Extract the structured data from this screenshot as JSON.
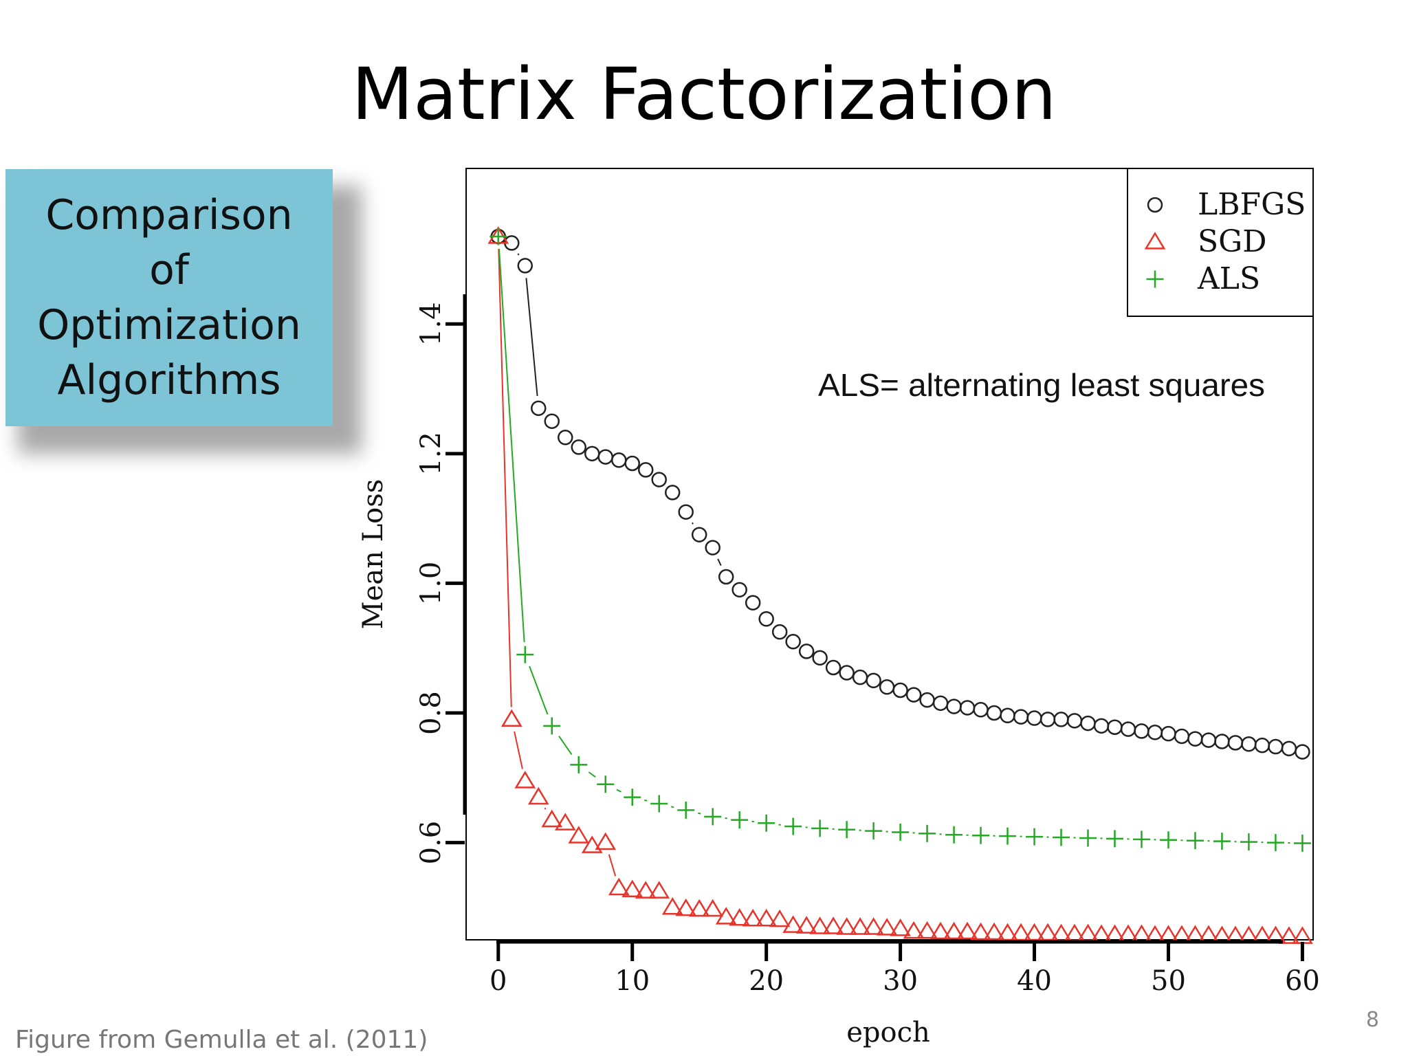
{
  "slide": {
    "title": "Matrix Factorization",
    "callout_text": "Comparison\nof\nOptimization\nAlgorithms",
    "citation": "Figure from Gemulla et al. (2011)",
    "page_number": "8"
  },
  "chart_data": {
    "type": "scatter",
    "title": "",
    "xlabel": "epoch",
    "ylabel": "Mean Loss",
    "xlim": [
      -2.4,
      60.8
    ],
    "ylim": [
      0.45,
      1.64
    ],
    "xticks": [
      0,
      10,
      20,
      30,
      40,
      50,
      60
    ],
    "yticks": [
      0.6,
      0.8,
      1.0,
      1.2,
      1.4
    ],
    "xtick_labels": [
      "0",
      "10",
      "20",
      "30",
      "40",
      "50",
      "60"
    ],
    "ytick_labels": [
      "0.6",
      "0.8",
      "1.0",
      "1.2",
      "1.4"
    ],
    "legend_position": "top-right",
    "annotation": "ALS= alternating least squares",
    "series": [
      {
        "name": "LBFGS",
        "marker": "circle",
        "color": "#222222",
        "x": [
          0,
          1,
          2,
          3,
          4,
          5,
          6,
          7,
          8,
          9,
          10,
          11,
          12,
          13,
          14,
          15,
          16,
          17,
          18,
          19,
          20,
          21,
          22,
          23,
          24,
          25,
          26,
          27,
          28,
          29,
          30,
          31,
          32,
          33,
          34,
          35,
          36,
          37,
          38,
          39,
          40,
          41,
          42,
          43,
          44,
          45,
          46,
          47,
          48,
          49,
          50,
          51,
          52,
          53,
          54,
          55,
          56,
          57,
          58,
          59,
          60
        ],
        "y": [
          1.535,
          1.525,
          1.49,
          1.27,
          1.25,
          1.225,
          1.21,
          1.2,
          1.195,
          1.19,
          1.185,
          1.175,
          1.16,
          1.14,
          1.11,
          1.075,
          1.055,
          1.01,
          0.99,
          0.97,
          0.945,
          0.925,
          0.91,
          0.895,
          0.885,
          0.87,
          0.862,
          0.855,
          0.85,
          0.84,
          0.835,
          0.828,
          0.82,
          0.815,
          0.81,
          0.808,
          0.805,
          0.8,
          0.796,
          0.794,
          0.792,
          0.79,
          0.79,
          0.788,
          0.784,
          0.78,
          0.778,
          0.775,
          0.772,
          0.77,
          0.768,
          0.764,
          0.76,
          0.758,
          0.756,
          0.754,
          0.752,
          0.75,
          0.748,
          0.745,
          0.74
        ]
      },
      {
        "name": "SGD",
        "marker": "triangle",
        "color": "#e8332a",
        "x": [
          0,
          1,
          2,
          3,
          4,
          5,
          6,
          7,
          8,
          9,
          10,
          11,
          12,
          13,
          14,
          15,
          16,
          17,
          18,
          19,
          20,
          21,
          22,
          23,
          24,
          25,
          26,
          27,
          28,
          29,
          30,
          31,
          32,
          33,
          34,
          35,
          36,
          37,
          38,
          39,
          40,
          41,
          42,
          43,
          44,
          45,
          46,
          47,
          48,
          49,
          50,
          51,
          52,
          53,
          54,
          55,
          56,
          57,
          58,
          59,
          60
        ],
        "y": [
          1.535,
          0.79,
          0.695,
          0.67,
          0.635,
          0.63,
          0.61,
          0.595,
          0.6,
          0.53,
          0.527,
          0.525,
          0.525,
          0.5,
          0.498,
          0.497,
          0.497,
          0.485,
          0.483,
          0.482,
          0.482,
          0.481,
          0.472,
          0.471,
          0.47,
          0.47,
          0.469,
          0.469,
          0.469,
          0.468,
          0.467,
          0.463,
          0.463,
          0.462,
          0.462,
          0.462,
          0.461,
          0.461,
          0.46,
          0.46,
          0.46,
          0.46,
          0.459,
          0.459,
          0.459,
          0.458,
          0.458,
          0.458,
          0.458,
          0.457,
          0.457,
          0.457,
          0.457,
          0.457,
          0.456,
          0.456,
          0.456,
          0.456,
          0.456,
          0.455,
          0.455
        ]
      },
      {
        "name": "ALS",
        "marker": "plus",
        "color": "#22aa22",
        "x": [
          0,
          2,
          4,
          6,
          8,
          10,
          12,
          14,
          16,
          18,
          20,
          22,
          24,
          26,
          28,
          30,
          32,
          34,
          36,
          38,
          40,
          42,
          44,
          46,
          48,
          50,
          52,
          54,
          56,
          58,
          60
        ],
        "y": [
          1.535,
          0.89,
          0.78,
          0.72,
          0.69,
          0.67,
          0.66,
          0.65,
          0.64,
          0.635,
          0.63,
          0.625,
          0.622,
          0.62,
          0.618,
          0.616,
          0.614,
          0.612,
          0.611,
          0.61,
          0.609,
          0.608,
          0.607,
          0.606,
          0.605,
          0.604,
          0.603,
          0.602,
          0.601,
          0.6,
          0.599
        ]
      }
    ]
  }
}
